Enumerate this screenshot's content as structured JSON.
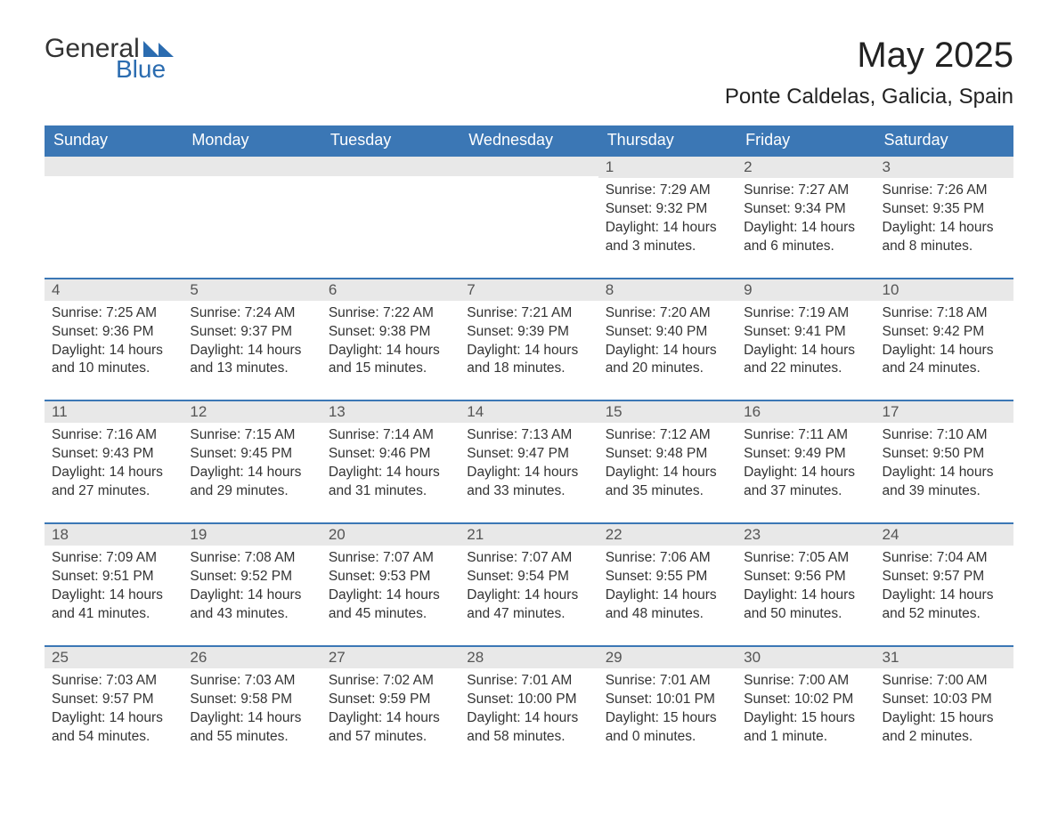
{
  "logo": {
    "general": "General",
    "blue": "Blue"
  },
  "title": "May 2025",
  "location": "Ponte Caldelas, Galicia, Spain",
  "colors": {
    "header_bg": "#3b77b5",
    "header_text": "#ffffff",
    "daynum_bg": "#e8e8e8",
    "row_border": "#3b77b5",
    "body_text": "#333333",
    "logo_blue": "#2b6cb0"
  },
  "typography": {
    "title_fontsize": 40,
    "location_fontsize": 24,
    "dow_fontsize": 18,
    "daynum_fontsize": 17,
    "body_fontsize": 15.5
  },
  "day_labels": [
    "Sunday",
    "Monday",
    "Tuesday",
    "Wednesday",
    "Thursday",
    "Friday",
    "Saturday"
  ],
  "weeks": [
    [
      null,
      null,
      null,
      null,
      {
        "n": "1",
        "sr": "Sunrise: 7:29 AM",
        "ss": "Sunset: 9:32 PM",
        "dl": "Daylight: 14 hours and 3 minutes."
      },
      {
        "n": "2",
        "sr": "Sunrise: 7:27 AM",
        "ss": "Sunset: 9:34 PM",
        "dl": "Daylight: 14 hours and 6 minutes."
      },
      {
        "n": "3",
        "sr": "Sunrise: 7:26 AM",
        "ss": "Sunset: 9:35 PM",
        "dl": "Daylight: 14 hours and 8 minutes."
      }
    ],
    [
      {
        "n": "4",
        "sr": "Sunrise: 7:25 AM",
        "ss": "Sunset: 9:36 PM",
        "dl": "Daylight: 14 hours and 10 minutes."
      },
      {
        "n": "5",
        "sr": "Sunrise: 7:24 AM",
        "ss": "Sunset: 9:37 PM",
        "dl": "Daylight: 14 hours and 13 minutes."
      },
      {
        "n": "6",
        "sr": "Sunrise: 7:22 AM",
        "ss": "Sunset: 9:38 PM",
        "dl": "Daylight: 14 hours and 15 minutes."
      },
      {
        "n": "7",
        "sr": "Sunrise: 7:21 AM",
        "ss": "Sunset: 9:39 PM",
        "dl": "Daylight: 14 hours and 18 minutes."
      },
      {
        "n": "8",
        "sr": "Sunrise: 7:20 AM",
        "ss": "Sunset: 9:40 PM",
        "dl": "Daylight: 14 hours and 20 minutes."
      },
      {
        "n": "9",
        "sr": "Sunrise: 7:19 AM",
        "ss": "Sunset: 9:41 PM",
        "dl": "Daylight: 14 hours and 22 minutes."
      },
      {
        "n": "10",
        "sr": "Sunrise: 7:18 AM",
        "ss": "Sunset: 9:42 PM",
        "dl": "Daylight: 14 hours and 24 minutes."
      }
    ],
    [
      {
        "n": "11",
        "sr": "Sunrise: 7:16 AM",
        "ss": "Sunset: 9:43 PM",
        "dl": "Daylight: 14 hours and 27 minutes."
      },
      {
        "n": "12",
        "sr": "Sunrise: 7:15 AM",
        "ss": "Sunset: 9:45 PM",
        "dl": "Daylight: 14 hours and 29 minutes."
      },
      {
        "n": "13",
        "sr": "Sunrise: 7:14 AM",
        "ss": "Sunset: 9:46 PM",
        "dl": "Daylight: 14 hours and 31 minutes."
      },
      {
        "n": "14",
        "sr": "Sunrise: 7:13 AM",
        "ss": "Sunset: 9:47 PM",
        "dl": "Daylight: 14 hours and 33 minutes."
      },
      {
        "n": "15",
        "sr": "Sunrise: 7:12 AM",
        "ss": "Sunset: 9:48 PM",
        "dl": "Daylight: 14 hours and 35 minutes."
      },
      {
        "n": "16",
        "sr": "Sunrise: 7:11 AM",
        "ss": "Sunset: 9:49 PM",
        "dl": "Daylight: 14 hours and 37 minutes."
      },
      {
        "n": "17",
        "sr": "Sunrise: 7:10 AM",
        "ss": "Sunset: 9:50 PM",
        "dl": "Daylight: 14 hours and 39 minutes."
      }
    ],
    [
      {
        "n": "18",
        "sr": "Sunrise: 7:09 AM",
        "ss": "Sunset: 9:51 PM",
        "dl": "Daylight: 14 hours and 41 minutes."
      },
      {
        "n": "19",
        "sr": "Sunrise: 7:08 AM",
        "ss": "Sunset: 9:52 PM",
        "dl": "Daylight: 14 hours and 43 minutes."
      },
      {
        "n": "20",
        "sr": "Sunrise: 7:07 AM",
        "ss": "Sunset: 9:53 PM",
        "dl": "Daylight: 14 hours and 45 minutes."
      },
      {
        "n": "21",
        "sr": "Sunrise: 7:07 AM",
        "ss": "Sunset: 9:54 PM",
        "dl": "Daylight: 14 hours and 47 minutes."
      },
      {
        "n": "22",
        "sr": "Sunrise: 7:06 AM",
        "ss": "Sunset: 9:55 PM",
        "dl": "Daylight: 14 hours and 48 minutes."
      },
      {
        "n": "23",
        "sr": "Sunrise: 7:05 AM",
        "ss": "Sunset: 9:56 PM",
        "dl": "Daylight: 14 hours and 50 minutes."
      },
      {
        "n": "24",
        "sr": "Sunrise: 7:04 AM",
        "ss": "Sunset: 9:57 PM",
        "dl": "Daylight: 14 hours and 52 minutes."
      }
    ],
    [
      {
        "n": "25",
        "sr": "Sunrise: 7:03 AM",
        "ss": "Sunset: 9:57 PM",
        "dl": "Daylight: 14 hours and 54 minutes."
      },
      {
        "n": "26",
        "sr": "Sunrise: 7:03 AM",
        "ss": "Sunset: 9:58 PM",
        "dl": "Daylight: 14 hours and 55 minutes."
      },
      {
        "n": "27",
        "sr": "Sunrise: 7:02 AM",
        "ss": "Sunset: 9:59 PM",
        "dl": "Daylight: 14 hours and 57 minutes."
      },
      {
        "n": "28",
        "sr": "Sunrise: 7:01 AM",
        "ss": "Sunset: 10:00 PM",
        "dl": "Daylight: 14 hours and 58 minutes."
      },
      {
        "n": "29",
        "sr": "Sunrise: 7:01 AM",
        "ss": "Sunset: 10:01 PM",
        "dl": "Daylight: 15 hours and 0 minutes."
      },
      {
        "n": "30",
        "sr": "Sunrise: 7:00 AM",
        "ss": "Sunset: 10:02 PM",
        "dl": "Daylight: 15 hours and 1 minute."
      },
      {
        "n": "31",
        "sr": "Sunrise: 7:00 AM",
        "ss": "Sunset: 10:03 PM",
        "dl": "Daylight: 15 hours and 2 minutes."
      }
    ]
  ]
}
